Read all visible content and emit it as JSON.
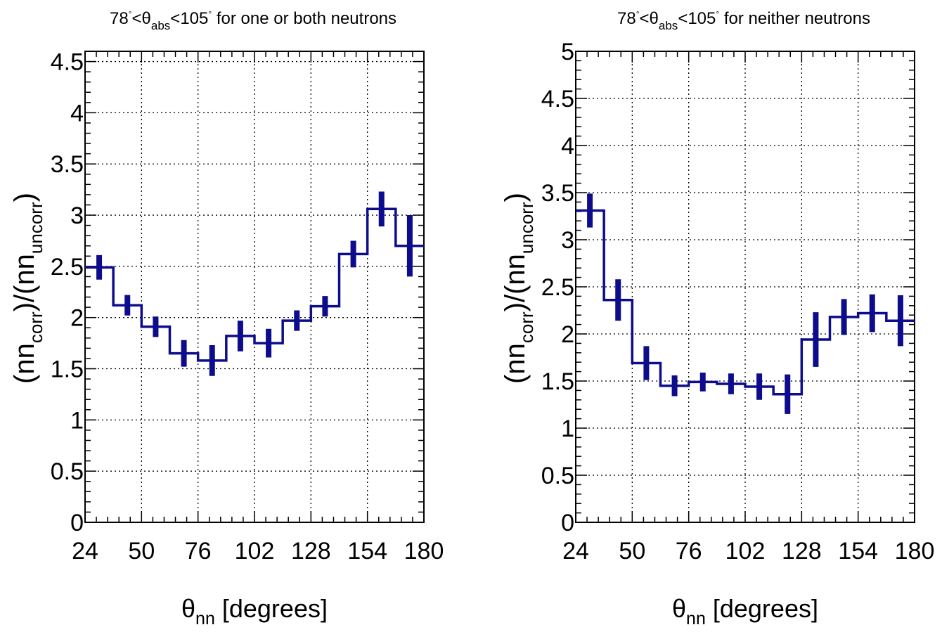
{
  "chart_data": [
    {
      "type": "histogram-step",
      "title_parts": {
        "pre": "78",
        "deg1": "°",
        "lt1": "<",
        "theta": "θ",
        "sub": "abs",
        "post": "<105",
        "deg2": "°",
        "tail": " for one or both neutrons"
      },
      "xlabel": {
        "sym": "θ",
        "sub": "nn",
        "rest": " [degrees]"
      },
      "ylabel": {
        "a": "(nn",
        "s1": "corr",
        "b": ")/(nn",
        "s2": "uncorr",
        "c": ")"
      },
      "xlim": [
        24,
        180
      ],
      "ylim": [
        0,
        4.6
      ],
      "xticks": [
        24,
        50,
        76,
        102,
        128,
        154,
        180
      ],
      "yticks": [
        0,
        0.5,
        1,
        1.5,
        2,
        2.5,
        3,
        3.5,
        4,
        4.5
      ],
      "ytick_labels": [
        "0",
        "0.5",
        "1",
        "1.5",
        "2",
        "2.5",
        "3",
        "3.5",
        "4",
        "4.5"
      ],
      "xtick_labels": [
        "24",
        "50",
        "76",
        "102",
        "128",
        "154",
        "180"
      ],
      "grid": true,
      "bin_edges": [
        24,
        37,
        50,
        63,
        76,
        89,
        102,
        115,
        128,
        141,
        154,
        167,
        180
      ],
      "values": [
        2.49,
        2.12,
        1.91,
        1.65,
        1.58,
        1.82,
        1.75,
        1.97,
        2.11,
        2.62,
        3.06,
        2.7
      ],
      "errors": [
        0.12,
        0.1,
        0.1,
        0.13,
        0.15,
        0.15,
        0.14,
        0.1,
        0.1,
        0.13,
        0.17,
        0.3
      ],
      "color": "#0c0c8c"
    },
    {
      "type": "histogram-step",
      "title_parts": {
        "pre": "78",
        "deg1": "°",
        "lt1": "<",
        "theta": "θ",
        "sub": "abs",
        "post": "<105",
        "deg2": "°",
        "tail": " for neither neutrons"
      },
      "xlabel": {
        "sym": "θ",
        "sub": "nn",
        "rest": " [degrees]"
      },
      "ylabel": {
        "a": "(nn",
        "s1": "corr",
        "b": ")/(nn",
        "s2": "uncorr",
        "c": ")"
      },
      "xlim": [
        24,
        180
      ],
      "ylim": [
        0,
        5
      ],
      "xticks": [
        24,
        50,
        76,
        102,
        128,
        154,
        180
      ],
      "yticks": [
        0,
        0.5,
        1,
        1.5,
        2,
        2.5,
        3,
        3.5,
        4,
        4.5,
        5
      ],
      "ytick_labels": [
        "0",
        "0.5",
        "1",
        "1.5",
        "2",
        "2.5",
        "3",
        "3.5",
        "4",
        "4.5",
        "5"
      ],
      "xtick_labels": [
        "24",
        "50",
        "76",
        "102",
        "128",
        "154",
        "180"
      ],
      "grid": true,
      "bin_edges": [
        24,
        37,
        50,
        63,
        76,
        89,
        102,
        115,
        128,
        141,
        154,
        167,
        180
      ],
      "values": [
        3.31,
        2.36,
        1.69,
        1.45,
        1.49,
        1.47,
        1.44,
        1.36,
        1.94,
        2.18,
        2.22,
        2.14
      ],
      "errors": [
        0.18,
        0.22,
        0.18,
        0.11,
        0.1,
        0.11,
        0.14,
        0.21,
        0.29,
        0.19,
        0.2,
        0.27
      ],
      "color": "#0c0c8c"
    }
  ]
}
